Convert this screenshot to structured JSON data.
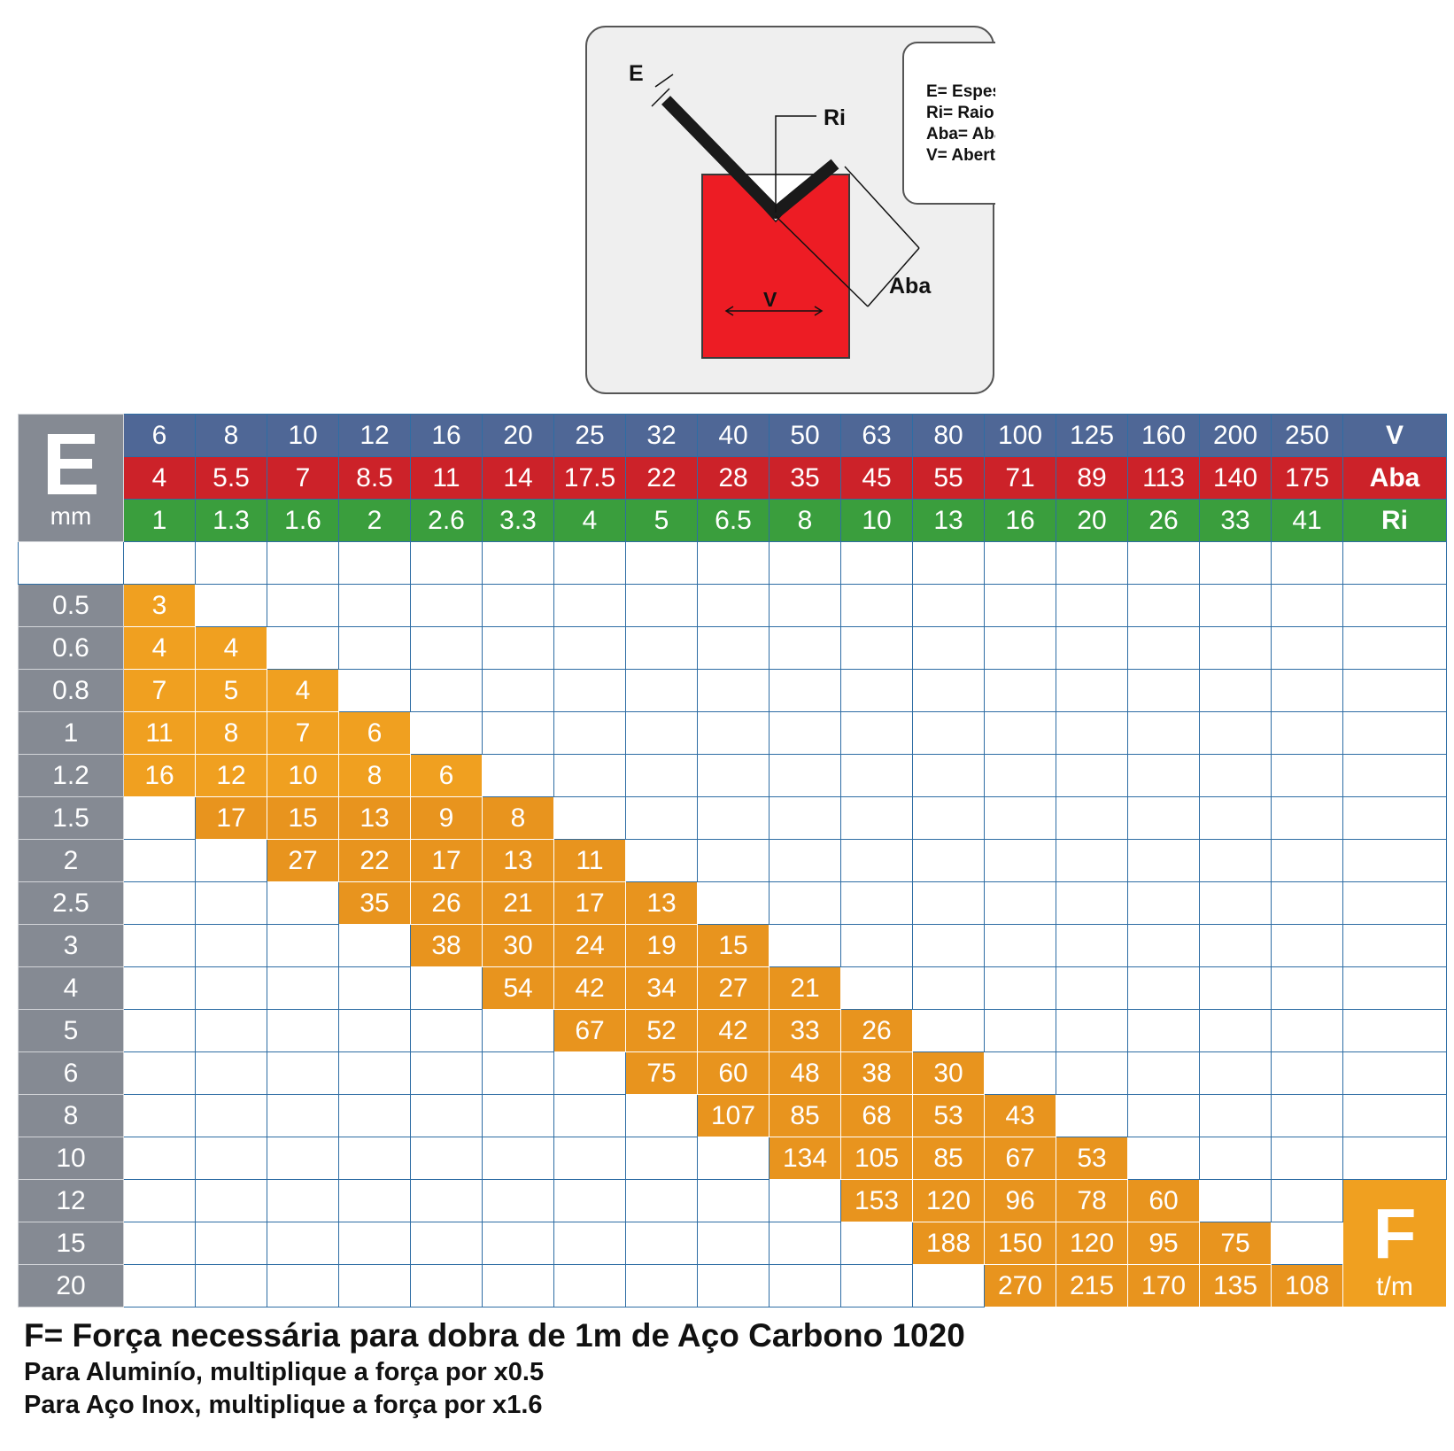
{
  "diagram": {
    "label_E": "E",
    "label_Ri": "Ri",
    "label_V": "V",
    "label_Aba": "Aba",
    "legend": [
      "E= Espessura",
      "Ri= Raio Interno",
      "Aba= Aba mínima",
      "V= Abertura V"
    ],
    "colors": {
      "die": "#ed1c24",
      "sheet": "#1a1a1a",
      "panel": "#efefef"
    }
  },
  "table": {
    "corner_big": "E",
    "corner_unit": "mm",
    "label_V": "V",
    "label_Aba": "Aba",
    "label_Ri": "Ri",
    "f_big": "F",
    "f_unit": "t/m"
  },
  "chart_data": {
    "type": "table",
    "V": [
      "6",
      "8",
      "10",
      "12",
      "16",
      "20",
      "25",
      "32",
      "40",
      "50",
      "63",
      "80",
      "100",
      "125",
      "160",
      "200",
      "250"
    ],
    "Aba": [
      "4",
      "5.5",
      "7",
      "8.5",
      "11",
      "14",
      "17.5",
      "22",
      "28",
      "35",
      "45",
      "55",
      "71",
      "89",
      "113",
      "140",
      "175"
    ],
    "Ri": [
      "1",
      "1.3",
      "1.6",
      "2",
      "2.6",
      "3.3",
      "4",
      "5",
      "6.5",
      "8",
      "10",
      "13",
      "16",
      "20",
      "26",
      "33",
      "41"
    ],
    "E_mm": [
      "0.5",
      "0.6",
      "0.8",
      "1",
      "1.2",
      "1.5",
      "2",
      "2.5",
      "3",
      "4",
      "5",
      "6",
      "8",
      "10",
      "12",
      "15",
      "20"
    ],
    "F_t_per_m": [
      [
        "3",
        "",
        "",
        "",
        "",
        "",
        "",
        "",
        "",
        "",
        "",
        "",
        "",
        "",
        "",
        "",
        ""
      ],
      [
        "4",
        "4",
        "",
        "",
        "",
        "",
        "",
        "",
        "",
        "",
        "",
        "",
        "",
        "",
        "",
        "",
        ""
      ],
      [
        "7",
        "5",
        "4",
        "",
        "",
        "",
        "",
        "",
        "",
        "",
        "",
        "",
        "",
        "",
        "",
        "",
        ""
      ],
      [
        "11",
        "8",
        "7",
        "6",
        "",
        "",
        "",
        "",
        "",
        "",
        "",
        "",
        "",
        "",
        "",
        "",
        ""
      ],
      [
        "16",
        "12",
        "10",
        "8",
        "6",
        "",
        "",
        "",
        "",
        "",
        "",
        "",
        "",
        "",
        "",
        "",
        ""
      ],
      [
        "",
        "17",
        "15",
        "13",
        "9",
        "8",
        "",
        "",
        "",
        "",
        "",
        "",
        "",
        "",
        "",
        "",
        ""
      ],
      [
        "",
        "",
        "27",
        "22",
        "17",
        "13",
        "11",
        "",
        "",
        "",
        "",
        "",
        "",
        "",
        "",
        "",
        ""
      ],
      [
        "",
        "",
        "",
        "35",
        "26",
        "21",
        "17",
        "13",
        "",
        "",
        "",
        "",
        "",
        "",
        "",
        "",
        ""
      ],
      [
        "",
        "",
        "",
        "",
        "38",
        "30",
        "24",
        "19",
        "15",
        "",
        "",
        "",
        "",
        "",
        "",
        "",
        ""
      ],
      [
        "",
        "",
        "",
        "",
        "",
        "54",
        "42",
        "34",
        "27",
        "21",
        "",
        "",
        "",
        "",
        "",
        "",
        ""
      ],
      [
        "",
        "",
        "",
        "",
        "",
        "",
        "67",
        "52",
        "42",
        "33",
        "26",
        "",
        "",
        "",
        "",
        "",
        ""
      ],
      [
        "",
        "",
        "",
        "",
        "",
        "",
        "",
        "75",
        "60",
        "48",
        "38",
        "30",
        "",
        "",
        "",
        "",
        ""
      ],
      [
        "",
        "",
        "",
        "",
        "",
        "",
        "",
        "",
        "107",
        "85",
        "68",
        "53",
        "43",
        "",
        "",
        "",
        ""
      ],
      [
        "",
        "",
        "",
        "",
        "",
        "",
        "",
        "",
        "",
        "134",
        "105",
        "85",
        "67",
        "53",
        "",
        "",
        ""
      ],
      [
        "",
        "",
        "",
        "",
        "",
        "",
        "",
        "",
        "",
        "",
        "153",
        "120",
        "96",
        "78",
        "60",
        "",
        ""
      ],
      [
        "",
        "",
        "",
        "",
        "",
        "",
        "",
        "",
        "",
        "",
        "",
        "188",
        "150",
        "120",
        "95",
        "75",
        ""
      ],
      [
        "",
        "",
        "",
        "",
        "",
        "",
        "",
        "",
        "",
        "",
        "",
        "",
        "270",
        "215",
        "170",
        "135",
        "108"
      ]
    ],
    "colors": {
      "V_row": "#4f6796",
      "Aba_row": "#cc2229",
      "Ri_row": "#3a9e3d",
      "E_col": "#858a93",
      "values": "#f0a020"
    }
  },
  "footer": {
    "title": "F= Força necessária para dobra de 1m de Aço Carbono 1020",
    "note1": "Para Aluminío, multiplique a força por x0.5",
    "note2": "Para Aço Inox, multiplique a força por x1.6"
  }
}
